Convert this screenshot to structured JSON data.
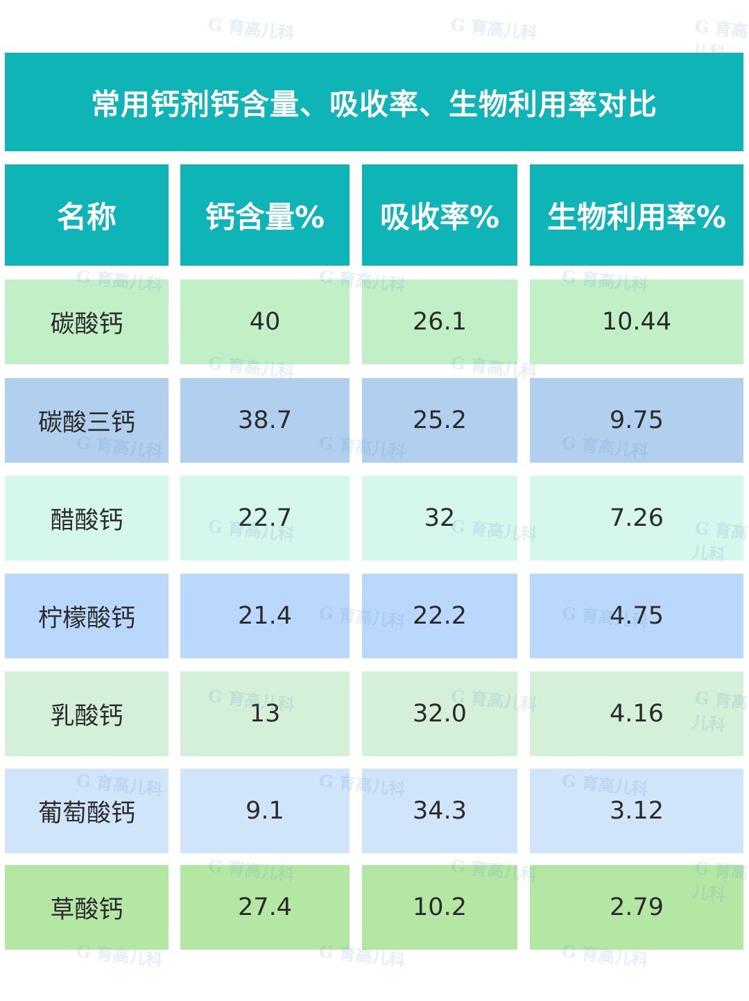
{
  "chart_data": {
    "type": "table",
    "title": "常用钙剂钙含量、吸收率、生物利用率对比",
    "columns": [
      "名称",
      "钙含量%",
      "吸收率%",
      "生物利用率%"
    ],
    "rows": [
      [
        "碳酸钙",
        "40",
        "26.1",
        "10.44"
      ],
      [
        "碳酸三钙",
        "38.7",
        "25.2",
        "9.75"
      ],
      [
        "醋酸钙",
        "22.7",
        "32",
        "7.26"
      ],
      [
        "柠檬酸钙",
        "21.4",
        "22.2",
        "4.75"
      ],
      [
        "乳酸钙",
        "13",
        "32.0",
        "4.16"
      ],
      [
        "葡萄酸钙",
        "9.1",
        "34.3",
        "3.12"
      ],
      [
        "草酸钙",
        "27.4",
        "10.2",
        "2.79"
      ]
    ]
  },
  "colors": {
    "header": "#0fb5b6",
    "row_fills": [
      "#c1efc6",
      "#b1cfee",
      "#d6f7ec",
      "#bad8fb",
      "#d5f0d9",
      "#d0e4fa",
      "#b4e6a4"
    ]
  },
  "watermark_text": "育高儿科"
}
